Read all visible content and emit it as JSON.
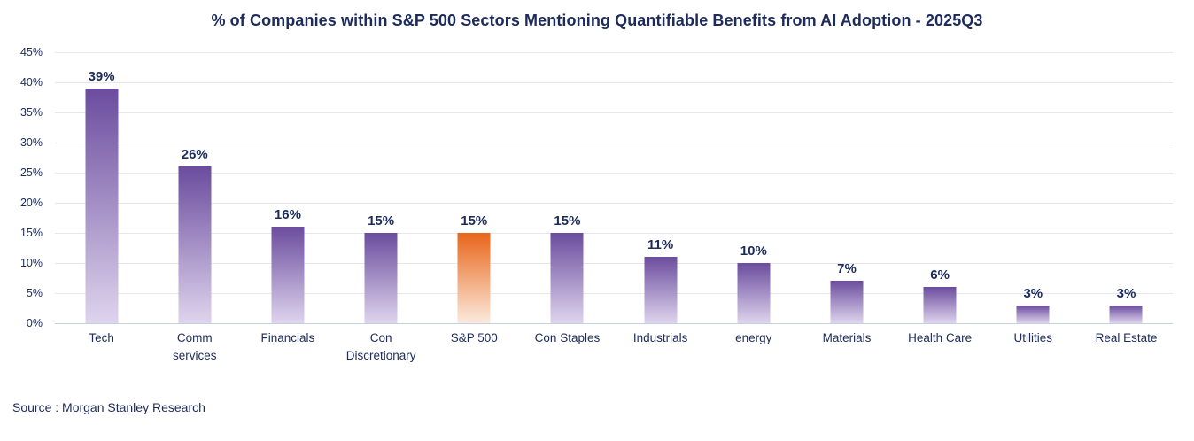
{
  "chart_data": {
    "type": "bar",
    "title": "% of Companies within S&P 500 Sectors Mentioning Quantifiable Benefits from AI Adoption - 2025Q3",
    "categories": [
      "Tech",
      "Comm services",
      "Financials",
      "Con Discretionary",
      "S&P 500",
      "Con Staples",
      "Industrials",
      "energy",
      "Materials",
      "Health Care",
      "Utilities",
      "Real Estate"
    ],
    "values": [
      39,
      26,
      16,
      15,
      15,
      15,
      11,
      10,
      7,
      6,
      3,
      3
    ],
    "data_labels": [
      "39%",
      "26%",
      "16%",
      "15%",
      "15%",
      "15%",
      "11%",
      "10%",
      "7%",
      "6%",
      "3%",
      "3%"
    ],
    "xtick_labels": [
      "Tech",
      "Comm\nservices",
      "Financials",
      "Con\nDiscretionary",
      "S&P 500",
      "Con Staples",
      "Industrials",
      "energy",
      "Materials",
      "Health Care",
      "Utilities",
      "Real Estate"
    ],
    "highlight_index": 4,
    "xlabel": "",
    "ylabel": "",
    "ylim": [
      0,
      45
    ],
    "ytick_step": 5,
    "ytick_labels": [
      "45%",
      "40%",
      "35%",
      "30%",
      "25%",
      "20%",
      "15%",
      "10%",
      "5%",
      "0%"
    ],
    "grid": true,
    "legend": "none",
    "colors": {
      "bar_gradient_top": "#6B4C9E",
      "bar_gradient_bottom": "#DED4ED",
      "highlight_gradient_top": "#E8661A",
      "highlight_gradient_bottom": "#FBEADD",
      "text": "#1C2B5A",
      "gridline": "#E7E6EE",
      "axis_line": "#C3D2E3"
    }
  },
  "source": "Source : Morgan Stanley Research"
}
